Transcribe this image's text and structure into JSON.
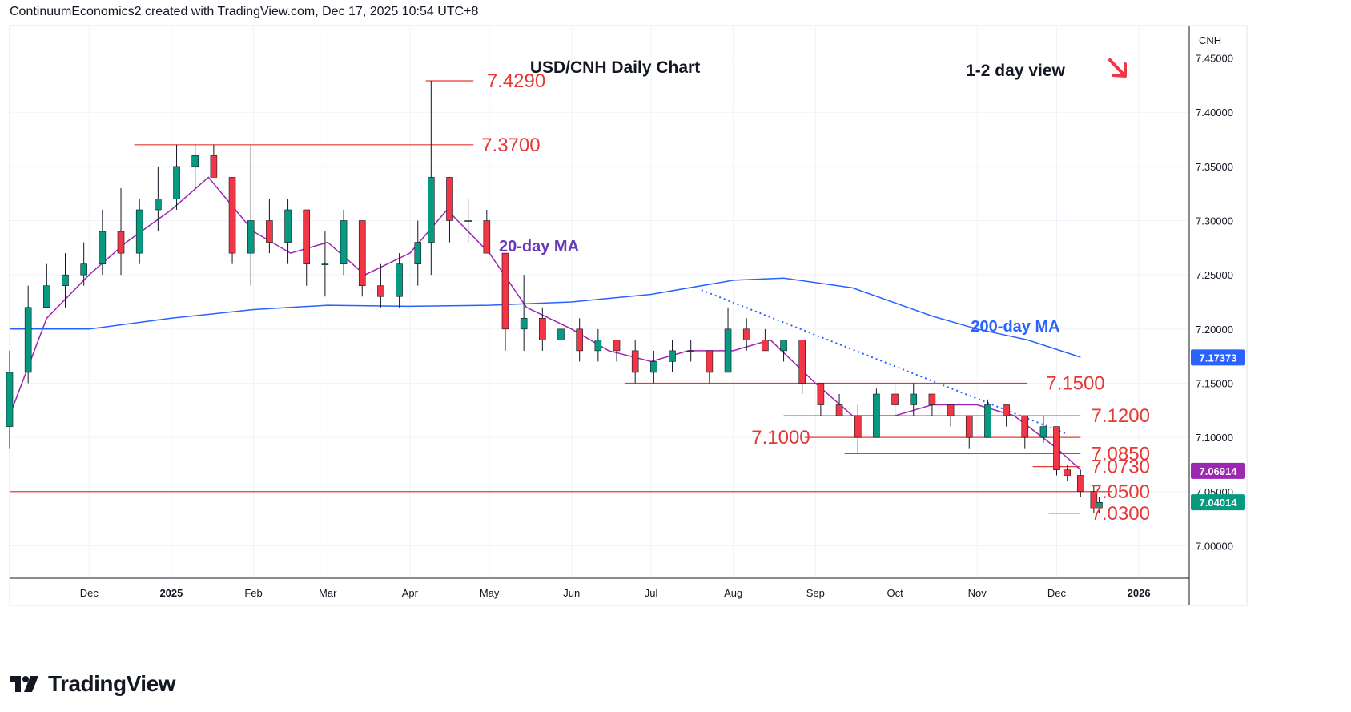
{
  "header": {
    "created_text": "ContinuumEconomics2 created with TradingView.com, Dec 17, 2025 10:54 UTC+8"
  },
  "branding": {
    "logo_text": "TradingView",
    "logo_icon": "tradingview-logo-icon"
  },
  "currency_label": "CNH",
  "chart_data": {
    "type": "candlestick",
    "title": "USD/CNH Daily Chart",
    "view_note": "1-2 day view",
    "view_arrow": "down-right-arrow",
    "x_ticks": [
      "Dec",
      "2025",
      "Feb",
      "Mar",
      "Apr",
      "May",
      "Jun",
      "Jul",
      "Aug",
      "Sep",
      "Oct",
      "Nov",
      "Dec",
      "2026"
    ],
    "y_ticks": [
      "7.00000",
      "7.05000",
      "7.10000",
      "7.15000",
      "7.20000",
      "7.25000",
      "7.30000",
      "7.35000",
      "7.40000",
      "7.45000"
    ],
    "ylim": [
      6.97,
      7.48
    ],
    "price_badges": [
      {
        "label": "7.17373",
        "value": 7.17373,
        "color": "#2962ff"
      },
      {
        "label": "7.06914",
        "value": 7.06914,
        "color": "#9c27b0"
      },
      {
        "label": "7.04014",
        "value": 7.04014,
        "color": "#089981"
      }
    ],
    "levels": [
      {
        "label": "7.4290",
        "value": 7.429,
        "from": "2025-04-07",
        "to": "2025-04-25"
      },
      {
        "label": "7.3700",
        "value": 7.37,
        "from": "2024-12-18",
        "to": "2025-04-25"
      },
      {
        "label": "7.1500",
        "value": 7.15,
        "from": "2025-06-21",
        "to": "2025-11-20"
      },
      {
        "label": "7.1200",
        "value": 7.12,
        "from": "2025-08-20",
        "to": "2025-12-10"
      },
      {
        "label": "7.1000",
        "value": 7.1,
        "from": "2025-08-28",
        "to": "2025-12-10"
      },
      {
        "label": "7.0850",
        "value": 7.085,
        "from": "2025-09-12",
        "to": "2025-12-10"
      },
      {
        "label": "7.0730",
        "value": 7.073,
        "from": "2025-11-22",
        "to": "2025-12-10"
      },
      {
        "label": "7.0500",
        "value": 7.05,
        "from": "2024-11-01",
        "to": "2025-12-22"
      },
      {
        "label": "7.0300",
        "value": 7.03,
        "from": "2025-11-28",
        "to": "2025-12-10"
      }
    ],
    "series": [
      {
        "name": "20-day MA",
        "color": "#9c27b0",
        "x": [
          "2024-11-01",
          "2024-11-15",
          "2024-12-01",
          "2024-12-15",
          "2025-01-01",
          "2025-01-15",
          "2025-02-01",
          "2025-02-15",
          "2025-03-01",
          "2025-03-15",
          "2025-04-01",
          "2025-04-15",
          "2025-05-01",
          "2025-05-15",
          "2025-06-01",
          "2025-06-15",
          "2025-07-01",
          "2025-07-15",
          "2025-08-01",
          "2025-08-15",
          "2025-09-01",
          "2025-09-15",
          "2025-10-01",
          "2025-10-15",
          "2025-11-01",
          "2025-11-15",
          "2025-12-01",
          "2025-12-10"
        ],
        "values": [
          7.12,
          7.21,
          7.25,
          7.28,
          7.31,
          7.34,
          7.29,
          7.27,
          7.28,
          7.25,
          7.27,
          7.31,
          7.27,
          7.22,
          7.2,
          7.18,
          7.17,
          7.18,
          7.18,
          7.19,
          7.15,
          7.12,
          7.12,
          7.13,
          7.13,
          7.12,
          7.09,
          7.07
        ]
      },
      {
        "name": "200-day MA",
        "color": "#2962ff",
        "x": [
          "2024-11-01",
          "2024-12-01",
          "2025-01-01",
          "2025-02-01",
          "2025-03-01",
          "2025-04-01",
          "2025-05-01",
          "2025-06-01",
          "2025-07-01",
          "2025-08-01",
          "2025-08-20",
          "2025-09-15",
          "2025-10-15",
          "2025-11-01",
          "2025-11-20",
          "2025-12-10"
        ],
        "values": [
          7.2,
          7.2,
          7.21,
          7.218,
          7.222,
          7.221,
          7.222,
          7.225,
          7.232,
          7.245,
          7.247,
          7.238,
          7.212,
          7.2,
          7.19,
          7.174
        ]
      },
      {
        "name": "",
        "style": "dotted-trendline",
        "color": "#2962ff",
        "x": [
          "2025-07-20",
          "2025-12-05"
        ],
        "values": [
          7.236,
          7.103
        ]
      }
    ],
    "candles": {
      "columns": [
        "date",
        "open",
        "high",
        "low",
        "close"
      ],
      "rows": [
        [
          "2024-11-01",
          7.11,
          7.18,
          7.09,
          7.16
        ],
        [
          "2024-11-08",
          7.16,
          7.24,
          7.15,
          7.22
        ],
        [
          "2024-11-15",
          7.22,
          7.26,
          7.22,
          7.24
        ],
        [
          "2024-11-22",
          7.24,
          7.27,
          7.22,
          7.25
        ],
        [
          "2024-11-29",
          7.25,
          7.28,
          7.24,
          7.26
        ],
        [
          "2024-12-06",
          7.26,
          7.31,
          7.25,
          7.29
        ],
        [
          "2024-12-13",
          7.29,
          7.33,
          7.25,
          7.27
        ],
        [
          "2024-12-20",
          7.27,
          7.32,
          7.26,
          7.31
        ],
        [
          "2024-12-27",
          7.31,
          7.35,
          7.29,
          7.32
        ],
        [
          "2025-01-03",
          7.32,
          7.37,
          7.31,
          7.35
        ],
        [
          "2025-01-10",
          7.35,
          7.37,
          7.33,
          7.36
        ],
        [
          "2025-01-17",
          7.36,
          7.37,
          7.34,
          7.34
        ],
        [
          "2025-01-24",
          7.34,
          7.34,
          7.26,
          7.27
        ],
        [
          "2025-01-31",
          7.27,
          7.37,
          7.24,
          7.3
        ],
        [
          "2025-02-07",
          7.3,
          7.32,
          7.27,
          7.28
        ],
        [
          "2025-02-14",
          7.28,
          7.32,
          7.26,
          7.31
        ],
        [
          "2025-02-21",
          7.31,
          7.31,
          7.24,
          7.26
        ],
        [
          "2025-02-28",
          7.26,
          7.29,
          7.23,
          7.26
        ],
        [
          "2025-03-07",
          7.26,
          7.31,
          7.25,
          7.3
        ],
        [
          "2025-03-14",
          7.3,
          7.3,
          7.23,
          7.24
        ],
        [
          "2025-03-21",
          7.24,
          7.26,
          7.22,
          7.23
        ],
        [
          "2025-03-28",
          7.23,
          7.27,
          7.22,
          7.26
        ],
        [
          "2025-04-04",
          7.26,
          7.3,
          7.24,
          7.28
        ],
        [
          "2025-04-09",
          7.28,
          7.429,
          7.25,
          7.34
        ],
        [
          "2025-04-16",
          7.34,
          7.34,
          7.28,
          7.3
        ],
        [
          "2025-04-23",
          7.3,
          7.32,
          7.28,
          7.3
        ],
        [
          "2025-04-30",
          7.3,
          7.31,
          7.27,
          7.27
        ],
        [
          "2025-05-07",
          7.27,
          7.27,
          7.18,
          7.2
        ],
        [
          "2025-05-14",
          7.2,
          7.25,
          7.18,
          7.21
        ],
        [
          "2025-05-21",
          7.21,
          7.22,
          7.18,
          7.19
        ],
        [
          "2025-05-28",
          7.19,
          7.21,
          7.17,
          7.2
        ],
        [
          "2025-06-04",
          7.2,
          7.21,
          7.17,
          7.18
        ],
        [
          "2025-06-11",
          7.18,
          7.2,
          7.17,
          7.19
        ],
        [
          "2025-06-18",
          7.19,
          7.19,
          7.17,
          7.18
        ],
        [
          "2025-06-25",
          7.18,
          7.19,
          7.15,
          7.16
        ],
        [
          "2025-07-02",
          7.16,
          7.18,
          7.15,
          7.17
        ],
        [
          "2025-07-09",
          7.17,
          7.19,
          7.16,
          7.18
        ],
        [
          "2025-07-16",
          7.18,
          7.19,
          7.17,
          7.18
        ],
        [
          "2025-07-23",
          7.18,
          7.18,
          7.15,
          7.16
        ],
        [
          "2025-07-30",
          7.16,
          7.22,
          7.16,
          7.2
        ],
        [
          "2025-08-06",
          7.2,
          7.21,
          7.18,
          7.19
        ],
        [
          "2025-08-13",
          7.19,
          7.2,
          7.18,
          7.18
        ],
        [
          "2025-08-20",
          7.18,
          7.19,
          7.17,
          7.19
        ],
        [
          "2025-08-27",
          7.19,
          7.19,
          7.14,
          7.15
        ],
        [
          "2025-09-03",
          7.15,
          7.15,
          7.12,
          7.13
        ],
        [
          "2025-09-10",
          7.13,
          7.14,
          7.12,
          7.12
        ],
        [
          "2025-09-17",
          7.12,
          7.13,
          7.085,
          7.1
        ],
        [
          "2025-09-24",
          7.1,
          7.145,
          7.1,
          7.14
        ],
        [
          "2025-10-01",
          7.14,
          7.15,
          7.12,
          7.13
        ],
        [
          "2025-10-08",
          7.13,
          7.15,
          7.12,
          7.14
        ],
        [
          "2025-10-15",
          7.14,
          7.14,
          7.12,
          7.13
        ],
        [
          "2025-10-22",
          7.13,
          7.13,
          7.11,
          7.12
        ],
        [
          "2025-10-29",
          7.12,
          7.12,
          7.09,
          7.1
        ],
        [
          "2025-11-05",
          7.1,
          7.135,
          7.1,
          7.13
        ],
        [
          "2025-11-12",
          7.13,
          7.13,
          7.11,
          7.12
        ],
        [
          "2025-11-19",
          7.12,
          7.12,
          7.09,
          7.1
        ],
        [
          "2025-11-26",
          7.1,
          7.12,
          7.095,
          7.11
        ],
        [
          "2025-12-01",
          7.11,
          7.11,
          7.065,
          7.07
        ],
        [
          "2025-12-05",
          7.07,
          7.075,
          7.06,
          7.065
        ],
        [
          "2025-12-10",
          7.065,
          7.07,
          7.045,
          7.05
        ],
        [
          "2025-12-15",
          7.05,
          7.055,
          7.03,
          7.035
        ],
        [
          "2025-12-17",
          7.035,
          7.045,
          7.03,
          7.04
        ]
      ]
    },
    "annotations": [
      {
        "text": "20-day MA",
        "color": "#673ab7"
      },
      {
        "text": "200-day MA",
        "color": "#2962ff"
      }
    ]
  }
}
